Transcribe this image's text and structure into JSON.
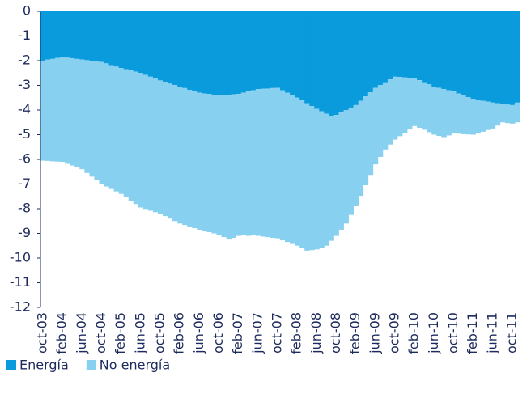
{
  "chart_data": {
    "type": "stacked-bar",
    "categories": [
      "oct-03",
      null,
      null,
      null,
      "feb-04",
      null,
      null,
      null,
      "jun-04",
      null,
      null,
      null,
      "oct-04",
      null,
      null,
      null,
      "feb-05",
      null,
      null,
      null,
      "jun-05",
      null,
      null,
      null,
      "oct-05",
      null,
      null,
      null,
      "feb-06",
      null,
      null,
      null,
      "jun-06",
      null,
      null,
      null,
      "oct-06",
      null,
      null,
      null,
      "feb-07",
      null,
      null,
      null,
      "jun-07",
      null,
      null,
      null,
      "oct-07",
      null,
      null,
      null,
      "feb-08",
      null,
      null,
      null,
      "jun-08",
      null,
      null,
      null,
      "oct-08",
      null,
      null,
      null,
      "feb-09",
      null,
      null,
      null,
      "jun-09",
      null,
      null,
      null,
      "oct-09",
      null,
      null,
      null,
      "feb-10",
      null,
      null,
      null,
      "jun-10",
      null,
      null,
      null,
      "oct-10",
      null,
      null,
      null,
      "feb-11",
      null,
      null,
      null,
      "jun-11",
      null,
      null,
      null,
      "oct-11",
      null
    ],
    "series": [
      {
        "name": "Energía",
        "color": "#0a9bdc",
        "values": [
          -2.0,
          -1.96,
          -1.93,
          -1.89,
          -1.85,
          -1.88,
          -1.9,
          -1.93,
          -1.95,
          -1.98,
          -2.0,
          -2.03,
          -2.05,
          -2.11,
          -2.18,
          -2.24,
          -2.3,
          -2.35,
          -2.4,
          -2.45,
          -2.5,
          -2.58,
          -2.65,
          -2.73,
          -2.8,
          -2.86,
          -2.93,
          -2.99,
          -3.05,
          -3.11,
          -3.18,
          -3.24,
          -3.3,
          -3.33,
          -3.35,
          -3.38,
          -3.4,
          -3.39,
          -3.38,
          -3.36,
          -3.35,
          -3.3,
          -3.25,
          -3.2,
          -3.15,
          -3.14,
          -3.13,
          -3.11,
          -3.1,
          -3.2,
          -3.3,
          -3.4,
          -3.5,
          -3.61,
          -3.73,
          -3.84,
          -3.95,
          -4.05,
          -4.15,
          -4.25,
          -4.2,
          -4.1,
          -4.0,
          -3.9,
          -3.8,
          -3.63,
          -3.45,
          -3.28,
          -3.1,
          -2.99,
          -2.88,
          -2.76,
          -2.65,
          -2.66,
          -2.68,
          -2.69,
          -2.7,
          -2.79,
          -2.88,
          -2.96,
          -3.05,
          -3.1,
          -3.15,
          -3.2,
          -3.25,
          -3.33,
          -3.4,
          -3.48,
          -3.55,
          -3.59,
          -3.63,
          -3.66,
          -3.7,
          -3.73,
          -3.75,
          -3.78,
          -3.8,
          -3.7
        ]
      },
      {
        "name": "No energía",
        "color": "#88d0f0",
        "values": [
          -4.05,
          -4.1,
          -4.15,
          -4.2,
          -4.25,
          -4.3,
          -4.35,
          -4.4,
          -4.45,
          -4.57,
          -4.7,
          -4.82,
          -4.95,
          -4.99,
          -5.02,
          -5.06,
          -5.1,
          -5.19,
          -5.28,
          -5.36,
          -5.45,
          -5.43,
          -5.43,
          -5.41,
          -5.4,
          -5.44,
          -5.47,
          -5.51,
          -5.55,
          -5.55,
          -5.55,
          -5.55,
          -5.55,
          -5.57,
          -5.6,
          -5.62,
          -5.65,
          -5.76,
          -5.87,
          -5.82,
          -5.75,
          -5.75,
          -5.85,
          -5.88,
          -5.95,
          -5.99,
          -6.02,
          -6.07,
          -6.1,
          -6.08,
          -6.05,
          -6.03,
          -6.0,
          -5.99,
          -5.97,
          -5.84,
          -5.7,
          -5.53,
          -5.35,
          -5.05,
          -4.9,
          -4.75,
          -4.6,
          -4.35,
          -4.1,
          -3.85,
          -3.6,
          -3.35,
          -3.1,
          -2.91,
          -2.72,
          -2.64,
          -2.55,
          -2.4,
          -2.25,
          -2.1,
          -1.95,
          -1.93,
          -1.92,
          -1.94,
          -1.95,
          -1.95,
          -1.95,
          -1.83,
          -1.7,
          -1.63,
          -1.58,
          -1.51,
          -1.45,
          -1.35,
          -1.25,
          -1.15,
          -1.05,
          -0.9,
          -0.75,
          -0.75,
          -0.75,
          -0.8
        ]
      }
    ],
    "ylim": [
      -12,
      0
    ],
    "yticks": [
      0,
      -1,
      -2,
      -3,
      -4,
      -5,
      -6,
      -7,
      -8,
      -9,
      -10,
      -11,
      -12
    ],
    "legend": "bottom-left"
  }
}
